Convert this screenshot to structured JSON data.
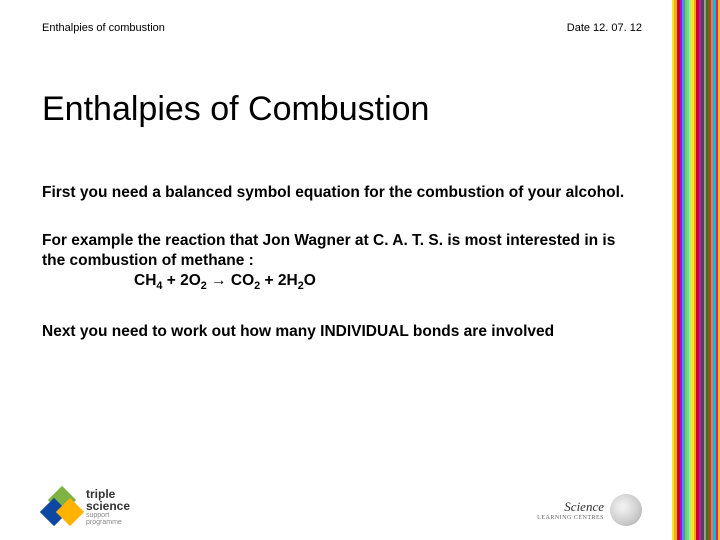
{
  "header": {
    "topic": "Enthalpies of combustion",
    "date": "Date 12. 07. 12"
  },
  "title": "Enthalpies of Combustion",
  "para1": "First you need a balanced symbol equation for the combustion of your alcohol.",
  "para2_a": "For example the reaction that Jon Wagner at C. A. T. S. is most interested in is the combustion of methane :",
  "equation": {
    "lhs1": "CH",
    "sub1": "4",
    "plus1": " + 2O",
    "sub2": "2",
    "arrow": " → CO",
    "sub3": "2",
    "plus2": " + 2H",
    "sub4": "2",
    "tail": "O"
  },
  "para3": "Next you need to work out how many INDIVIDUAL bonds are involved",
  "logo_left": {
    "line1": "triple",
    "line2": "science",
    "line3": "support",
    "line4": "programme"
  },
  "logo_right": {
    "name": "Science",
    "sub": "LEARNING CENTRES"
  },
  "stripes": [
    {
      "w": 2,
      "c": "#f8e71c"
    },
    {
      "w": 3,
      "c": "#f5a623"
    },
    {
      "w": 3,
      "c": "#d0021b"
    },
    {
      "w": 2,
      "c": "#9013fe"
    },
    {
      "w": 3,
      "c": "#4a90e2"
    },
    {
      "w": 2,
      "c": "#7ed321"
    },
    {
      "w": 2,
      "c": "#50e3c2"
    },
    {
      "w": 2,
      "c": "#b8e986"
    },
    {
      "w": 3,
      "c": "#f8e71c"
    },
    {
      "w": 2,
      "c": "#f5a623"
    },
    {
      "w": 3,
      "c": "#d0021b"
    },
    {
      "w": 2,
      "c": "#bd10e0"
    },
    {
      "w": 3,
      "c": "#4a4a4a"
    },
    {
      "w": 2,
      "c": "#9b9b9b"
    },
    {
      "w": 2,
      "c": "#417505"
    },
    {
      "w": 3,
      "c": "#8b572a"
    },
    {
      "w": 2,
      "c": "#ff6f61"
    },
    {
      "w": 3,
      "c": "#00bcd4"
    },
    {
      "w": 2,
      "c": "#e91e63"
    },
    {
      "w": 2,
      "c": "#ffc107"
    }
  ],
  "tri_colors": [
    "#7cb342",
    "#0d47a1",
    "#ffb300"
  ]
}
